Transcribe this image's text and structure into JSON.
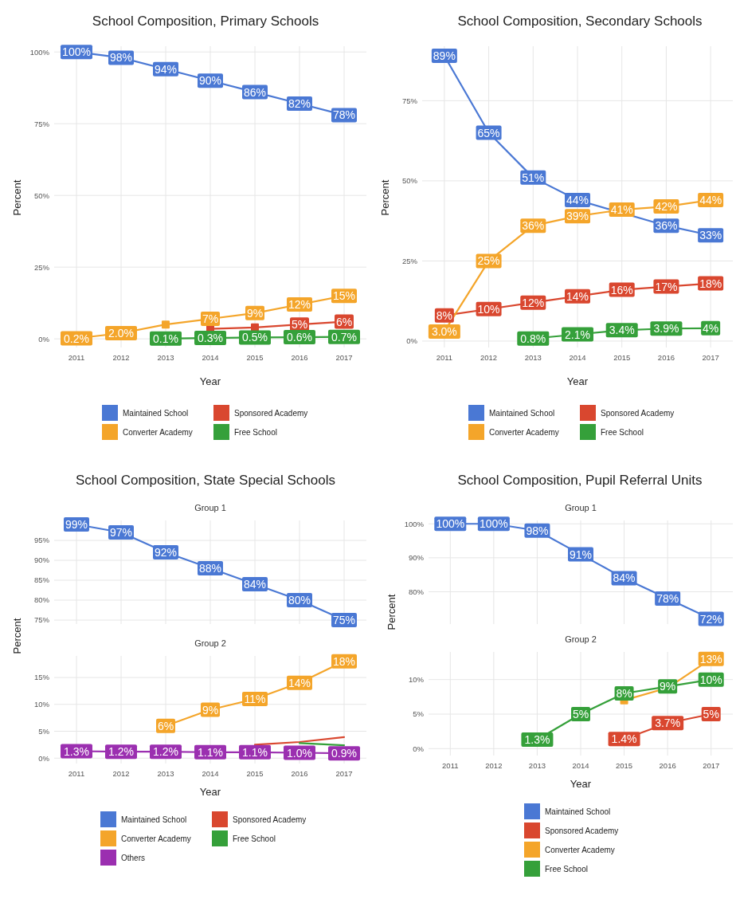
{
  "chart_data": [
    {
      "type": "line",
      "title": "School Composition, Primary Schools",
      "xlabel": "Year",
      "ylabel": "Percent",
      "categories": [
        "2011",
        "2012",
        "2013",
        "2014",
        "2015",
        "2016",
        "2017"
      ],
      "ylim": [
        -3,
        102
      ],
      "yticks": [
        {
          "value": 0,
          "label": "0%"
        },
        {
          "value": 25,
          "label": "25%"
        },
        {
          "value": 50,
          "label": "50%"
        },
        {
          "value": 75,
          "label": "75%"
        },
        {
          "value": 100,
          "label": "100%"
        }
      ],
      "grid": true,
      "legend": "bottom",
      "marker": "square",
      "line_style": "solid",
      "series": [
        {
          "name": "Maintained School",
          "color": "#4a78d4",
          "values": [
            100,
            98,
            94,
            90,
            86,
            82,
            78
          ],
          "value_labels": [
            "100%",
            "98%",
            "94%",
            "90%",
            "86%",
            "82%",
            "78%"
          ]
        },
        {
          "name": "Sponsored Academy",
          "color": "#d9472f",
          "values": [
            null,
            null,
            null,
            3.5,
            4,
            5,
            6
          ],
          "value_labels": [
            null,
            null,
            null,
            null,
            null,
            "5%",
            "6%"
          ]
        },
        {
          "name": "Converter Academy",
          "color": "#f4a52a",
          "values": [
            0.2,
            2.0,
            5,
            7,
            9,
            12,
            15
          ],
          "value_labels": [
            "0.2%",
            "2.0%",
            null,
            "7%",
            "9%",
            "12%",
            "15%"
          ]
        },
        {
          "name": "Free School",
          "color": "#35a03a",
          "values": [
            null,
            null,
            0.1,
            0.3,
            0.5,
            0.6,
            0.7
          ],
          "value_labels": [
            null,
            null,
            "0.1%",
            "0.3%",
            "0.5%",
            "0.6%",
            "0.7%"
          ]
        }
      ]
    },
    {
      "type": "line",
      "title": "School Composition, Secondary Schools",
      "xlabel": "Year",
      "ylabel": "Percent",
      "categories": [
        "2011",
        "2012",
        "2013",
        "2014",
        "2015",
        "2016",
        "2017"
      ],
      "ylim": [
        -2,
        92
      ],
      "yticks": [
        {
          "value": 0,
          "label": "0%"
        },
        {
          "value": 25,
          "label": "25%"
        },
        {
          "value": 50,
          "label": "50%"
        },
        {
          "value": 75,
          "label": "75%"
        }
      ],
      "grid": true,
      "legend": "bottom",
      "marker": "square",
      "line_style": "solid",
      "series": [
        {
          "name": "Maintained School",
          "color": "#4a78d4",
          "values": [
            89,
            65,
            51,
            44,
            null,
            36,
            33
          ],
          "value_labels": [
            "89%",
            "65%",
            "51%",
            "44%",
            null,
            "36%",
            "33%"
          ]
        },
        {
          "name": "Sponsored Academy",
          "color": "#d9472f",
          "values": [
            8,
            10,
            12,
            14,
            16,
            17,
            18
          ],
          "value_labels": [
            "8%",
            "10%",
            "12%",
            "14%",
            "16%",
            "17%",
            "18%"
          ]
        },
        {
          "name": "Converter Academy",
          "color": "#f4a52a",
          "values": [
            3.0,
            25,
            36,
            39,
            41,
            42,
            44
          ],
          "value_labels": [
            "3.0%",
            "25%",
            "36%",
            "39%",
            "41%",
            "42%",
            "44%"
          ]
        },
        {
          "name": "Free School",
          "color": "#35a03a",
          "values": [
            null,
            null,
            0.8,
            2.1,
            3.4,
            3.9,
            4
          ],
          "value_labels": [
            null,
            null,
            "0.8%",
            "2.1%",
            "3.4%",
            "3.9%",
            "4%"
          ]
        }
      ]
    },
    {
      "type": "line",
      "title": "School Composition, State Special Schools",
      "subtitle": "Group 1",
      "ylabel": "Percent",
      "categories": [
        "2011",
        "2012",
        "2013",
        "2014",
        "2015",
        "2016",
        "2017"
      ],
      "ylim": [
        74,
        100
      ],
      "yticks": [
        {
          "value": 75,
          "label": "75%"
        },
        {
          "value": 80,
          "label": "80%"
        },
        {
          "value": 85,
          "label": "85%"
        },
        {
          "value": 90,
          "label": "90%"
        },
        {
          "value": 95,
          "label": "95%"
        }
      ],
      "grid": true,
      "tick_labels": "y",
      "legend": "bottom",
      "marker": "square",
      "line_style": "solid",
      "series": [
        {
          "name": "Maintained School",
          "color": "#4a78d4",
          "values": [
            99,
            97,
            92,
            88,
            84,
            80,
            75
          ],
          "value_labels": [
            "99%",
            "97%",
            "92%",
            "88%",
            "84%",
            "80%",
            "75%"
          ]
        }
      ]
    },
    {
      "type": "line",
      "subtitle": "Group 2",
      "xlabel": "Year",
      "categories": [
        "2011",
        "2012",
        "2013",
        "2014",
        "2015",
        "2016",
        "2017"
      ],
      "ylim": [
        -1,
        19
      ],
      "yticks": [
        {
          "value": 0,
          "label": "0%"
        },
        {
          "value": 5,
          "label": "5%"
        },
        {
          "value": 10,
          "label": "10%"
        },
        {
          "value": 15,
          "label": "15%"
        }
      ],
      "grid": true,
      "legend": "bottom",
      "marker": "square",
      "line_style": "solid",
      "series": [
        {
          "name": "Sponsored Academy",
          "color": "#d9472f",
          "marker": "none",
          "values": [
            null,
            null,
            null,
            null,
            2.5,
            3,
            3.9
          ],
          "value_labels": [
            null,
            null,
            null,
            null,
            null,
            null,
            null
          ]
        },
        {
          "name": "Converter Academy",
          "color": "#f4a52a",
          "values": [
            null,
            null,
            6,
            9,
            11,
            14,
            18
          ],
          "value_labels": [
            null,
            null,
            "6%",
            "9%",
            "11%",
            "14%",
            "18%"
          ]
        },
        {
          "name": "Free School",
          "color": "#35a03a",
          "marker": "none",
          "values": [
            null,
            null,
            null,
            null,
            null,
            2.8,
            2.4
          ],
          "value_labels": [
            null,
            null,
            null,
            null,
            null,
            null,
            null
          ]
        },
        {
          "name": "Others",
          "color": "#9b2fb0",
          "values": [
            1.3,
            1.2,
            1.2,
            1.1,
            1.1,
            1.0,
            0.9
          ],
          "value_labels": [
            "1.3%",
            "1.2%",
            "1.2%",
            "1.1%",
            "1.1%",
            "1.0%",
            "0.9%"
          ]
        }
      ]
    },
    {
      "type": "line",
      "title": "School Composition, Pupil Referral Units",
      "subtitle": "Group 1",
      "ylabel": "Percent",
      "categories": [
        "2011",
        "2012",
        "2013",
        "2014",
        "2015",
        "2016",
        "2017"
      ],
      "ylim": [
        70.5,
        101
      ],
      "yticks": [
        {
          "value": 80,
          "label": "80%"
        },
        {
          "value": 90,
          "label": "90%"
        },
        {
          "value": 100,
          "label": "100%"
        }
      ],
      "grid": true,
      "tick_labels": "y",
      "legend": "bottom",
      "marker": "square",
      "line_style": "solid",
      "series": [
        {
          "name": "Maintained School",
          "color": "#4a78d4",
          "values": [
            100,
            100,
            98,
            91,
            84,
            78,
            72
          ],
          "value_labels": [
            "100%",
            "100%",
            "98%",
            "91%",
            "84%",
            "78%",
            "72%"
          ]
        }
      ]
    },
    {
      "type": "line",
      "subtitle": "Group 2",
      "xlabel": "Year",
      "categories": [
        "2011",
        "2012",
        "2013",
        "2014",
        "2015",
        "2016",
        "2017"
      ],
      "ylim": [
        -1,
        14
      ],
      "yticks": [
        {
          "value": 0,
          "label": "0%"
        },
        {
          "value": 5,
          "label": "5%"
        },
        {
          "value": 10,
          "label": "10%"
        }
      ],
      "grid": true,
      "legend": "bottom",
      "marker": "square",
      "line_style": "solid",
      "series": [
        {
          "name": "Sponsored Academy",
          "color": "#d9472f",
          "values": [
            null,
            null,
            null,
            null,
            1.4,
            3.7,
            5
          ],
          "value_labels": [
            null,
            null,
            null,
            null,
            "1.4%",
            "3.7%",
            "5%"
          ]
        },
        {
          "name": "Converter Academy",
          "color": "#f4a52a",
          "values": [
            null,
            null,
            null,
            null,
            7,
            8.8,
            13
          ],
          "value_labels": [
            null,
            null,
            null,
            null,
            null,
            null,
            "13%"
          ]
        },
        {
          "name": "Free School",
          "color": "#35a03a",
          "values": [
            null,
            null,
            1.3,
            5,
            8,
            9,
            10
          ],
          "value_labels": [
            null,
            null,
            "1.3%",
            "5%",
            "8%",
            "9%",
            "10%"
          ]
        }
      ]
    }
  ]
}
